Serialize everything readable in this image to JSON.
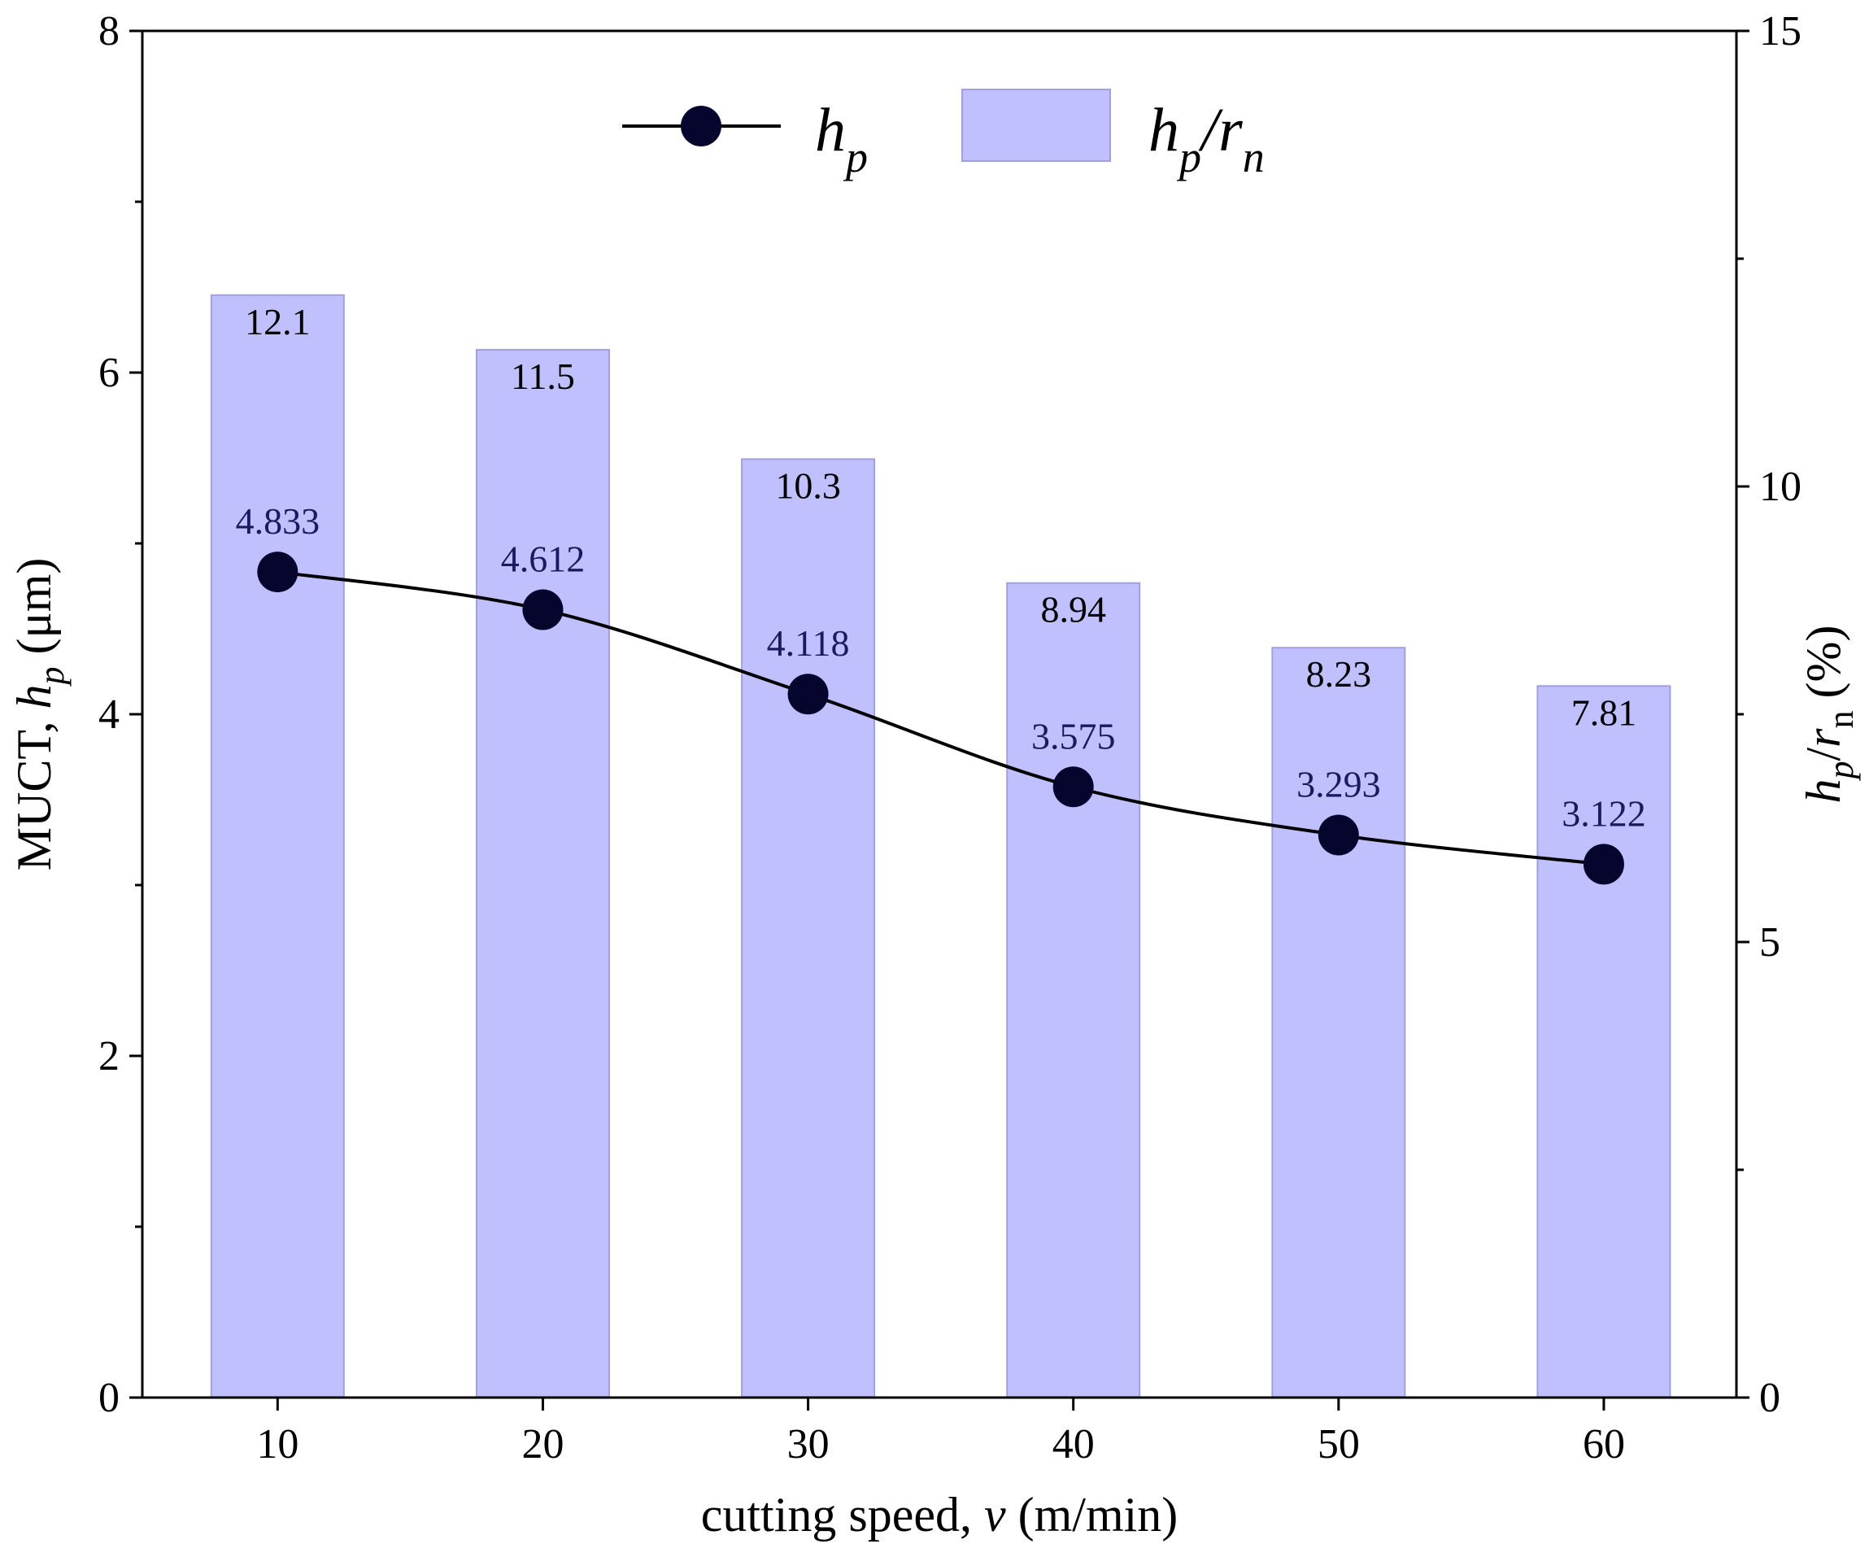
{
  "chart_data": {
    "type": "bar",
    "categories": [
      "10",
      "20",
      "30",
      "40",
      "50",
      "60"
    ],
    "x": [
      10,
      20,
      30,
      40,
      50,
      60
    ],
    "series": [
      {
        "name": "hp/rn",
        "kind": "bar",
        "axis": "right",
        "values": [
          12.1,
          11.5,
          10.3,
          8.94,
          8.23,
          7.81
        ],
        "labels": [
          "12.1",
          "11.5",
          "10.3",
          "8.94",
          "8.23",
          "7.81"
        ],
        "color": "#c0c0ff",
        "edge_color": "#a0a0e0"
      },
      {
        "name": "hp",
        "kind": "line",
        "axis": "left",
        "values": [
          4.833,
          4.612,
          4.118,
          3.575,
          3.293,
          3.122
        ],
        "labels": [
          "4.833",
          "4.612",
          "4.118",
          "3.575",
          "3.293",
          "3.122"
        ],
        "color": "#000000",
        "marker_color": "#05052e",
        "label_color": "#1a1a60"
      }
    ],
    "xlabel": {
      "prefix": "cutting speed, ",
      "var": "v",
      "suffix": " (m/min)"
    },
    "ylabel_left": {
      "prefix": "MUCT, ",
      "var": "h",
      "sub": "p",
      "suffix": " (μm)"
    },
    "ylabel_right": {
      "var1": "h",
      "sub1": "p",
      "slash": "/",
      "var2": "r",
      "sub2": "n",
      "suffix": " (%)"
    },
    "ylim_left": [
      0,
      8
    ],
    "ylim_right": [
      0,
      15
    ],
    "xlim": [
      4.9,
      65
    ],
    "left_ticks": [
      "0",
      "2",
      "4",
      "6",
      "8"
    ],
    "right_ticks": [
      "0",
      "5",
      "10",
      "15"
    ],
    "grid": false,
    "legend": {
      "position": "top-center",
      "line_entry": {
        "var": "h",
        "sub": "p"
      },
      "bar_entry": {
        "var1": "h",
        "sub1": "p",
        "slash": "/",
        "var2": "r",
        "sub2": "n"
      }
    }
  }
}
